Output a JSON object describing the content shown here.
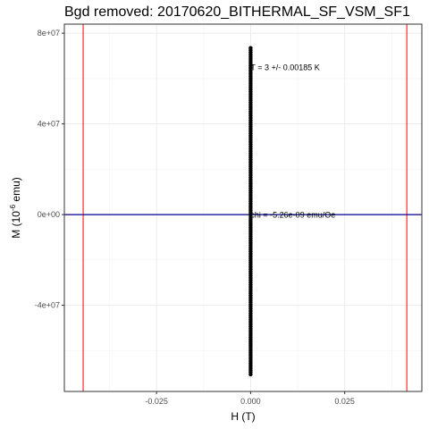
{
  "chart_data": {
    "type": "scatter",
    "title": "Bgd removed: 20170620_BITHERMAL_SF_VSM_SF1",
    "xlabel": "H (T)",
    "ylabel": {
      "prefix": "M (10",
      "exponent": "-6",
      "suffix": " emu)"
    },
    "xlim": [
      -0.0495,
      0.0455
    ],
    "ylim": [
      -78000000,
      84000000
    ],
    "x_ticks": [
      {
        "value": -0.025,
        "label": "-0.025"
      },
      {
        "value": 0.0,
        "label": "0.000"
      },
      {
        "value": 0.025,
        "label": "0.025"
      }
    ],
    "y_ticks": [
      {
        "value": -40000000,
        "label": "-4e+07"
      },
      {
        "value": 0,
        "label": "0e+00"
      },
      {
        "value": 40000000,
        "label": "4e+07"
      },
      {
        "value": 80000000,
        "label": "8e+07"
      }
    ],
    "x_minor": [
      -0.0375,
      -0.0125,
      0.0125,
      0.0375
    ],
    "y_minor": [
      -60000000,
      -20000000,
      20000000,
      60000000
    ],
    "grid": true,
    "series": [
      {
        "x_min": 0.0,
        "x_max": 0.0,
        "y_min": -70500000,
        "y_max": 73500000,
        "color": "#000000"
      }
    ],
    "vlines": [
      {
        "x": -0.0445,
        "color": "#ff0000"
      },
      {
        "x": 0.0415,
        "color": "#ff0000"
      }
    ],
    "hline": {
      "y": 0,
      "color": "#00008b"
    },
    "annotations": [
      {
        "text": "T = 3 +/- 0.00185 K",
        "x": 0.0,
        "y": 65000000
      },
      {
        "text": "chi = -5.26e-09 emu/Oe",
        "x": 0.0,
        "y": 0
      }
    ]
  }
}
